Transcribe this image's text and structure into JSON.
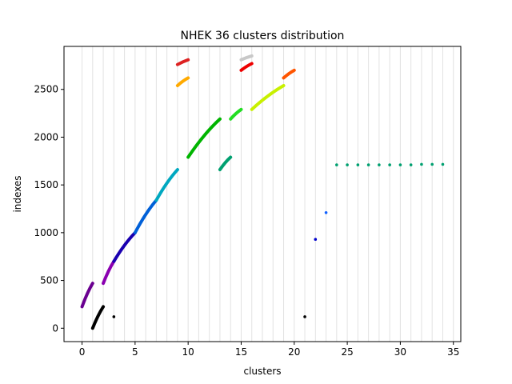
{
  "chart_data": {
    "type": "scatter",
    "title": "NHEK 36 clusters distribution",
    "xlabel": "clusters",
    "ylabel": "indexes",
    "xlim": [
      -1.7,
      35.7
    ],
    "ylim": [
      -140,
      2950
    ],
    "xticks": [
      "0",
      "5",
      "10",
      "15",
      "20",
      "25",
      "30",
      "35"
    ],
    "xtick_values": [
      0,
      5,
      10,
      15,
      20,
      25,
      30,
      35
    ],
    "yticks": [
      "0",
      "500",
      "1000",
      "1500",
      "2000",
      "2500"
    ],
    "ytick_values": [
      0,
      500,
      1000,
      1500,
      2000,
      2500
    ],
    "grid": "vertical lines at each cluster (0-35)",
    "legend": "none",
    "series": [
      {
        "x": [
          0,
          1
        ],
        "y": [
          225,
          470
        ],
        "color": "#6a0090",
        "style": "segment"
      },
      {
        "x": [
          1,
          2
        ],
        "y": [
          0,
          225
        ],
        "color": "#000000",
        "style": "segment"
      },
      {
        "x": [
          2,
          3
        ],
        "y": [
          470,
          700
        ],
        "color": "#8a00b0",
        "style": "segment"
      },
      {
        "x": [
          3,
          5
        ],
        "y": [
          700,
          1000
        ],
        "color": "#1a00b0",
        "style": "segment"
      },
      {
        "x": [
          5,
          7
        ],
        "y": [
          1000,
          1340
        ],
        "color": "#0060d8",
        "style": "segment"
      },
      {
        "x": [
          7,
          9
        ],
        "y": [
          1340,
          1660
        ],
        "color": "#00a8c0",
        "style": "segment"
      },
      {
        "x": [
          10,
          13
        ],
        "y": [
          1790,
          2190
        ],
        "color": "#00b400",
        "style": "segment"
      },
      {
        "x": [
          13,
          14
        ],
        "y": [
          1660,
          1790
        ],
        "color": "#00a070",
        "style": "segment"
      },
      {
        "x": [
          14,
          15
        ],
        "y": [
          2190,
          2290
        ],
        "color": "#22dd22",
        "style": "segment"
      },
      {
        "x": [
          16,
          19
        ],
        "y": [
          2290,
          2540
        ],
        "color": "#c8f000",
        "style": "segment"
      },
      {
        "x": [
          9,
          10
        ],
        "y": [
          2540,
          2620
        ],
        "color": "#ffaa00",
        "style": "segment"
      },
      {
        "x": [
          9,
          10
        ],
        "y": [
          2760,
          2810
        ],
        "color": "#dd2222",
        "style": "segment"
      },
      {
        "x": [
          15,
          16
        ],
        "y": [
          2700,
          2770
        ],
        "color": "#ee0000",
        "style": "segment"
      },
      {
        "x": [
          15,
          16
        ],
        "y": [
          2810,
          2850
        ],
        "color": "#c8c8c8",
        "style": "segment"
      },
      {
        "x": [
          19,
          20
        ],
        "y": [
          2620,
          2700
        ],
        "color": "#ff5500",
        "style": "segment"
      },
      {
        "x": [
          3
        ],
        "y": [
          120
        ],
        "color": "#000000",
        "style": "point"
      },
      {
        "x": [
          21
        ],
        "y": [
          120
        ],
        "color": "#000000",
        "style": "point"
      },
      {
        "x": [
          22
        ],
        "y": [
          930
        ],
        "color": "#0000cc",
        "style": "point"
      },
      {
        "x": [
          23
        ],
        "y": [
          1210
        ],
        "color": "#1060ff",
        "style": "point"
      },
      {
        "x": [
          24,
          25,
          26,
          27,
          28,
          29,
          30,
          31,
          32,
          33,
          34
        ],
        "y": [
          1710,
          1710,
          1710,
          1710,
          1710,
          1710,
          1710,
          1710,
          1715,
          1715,
          1715
        ],
        "color": "#00a070",
        "style": "point"
      }
    ]
  }
}
